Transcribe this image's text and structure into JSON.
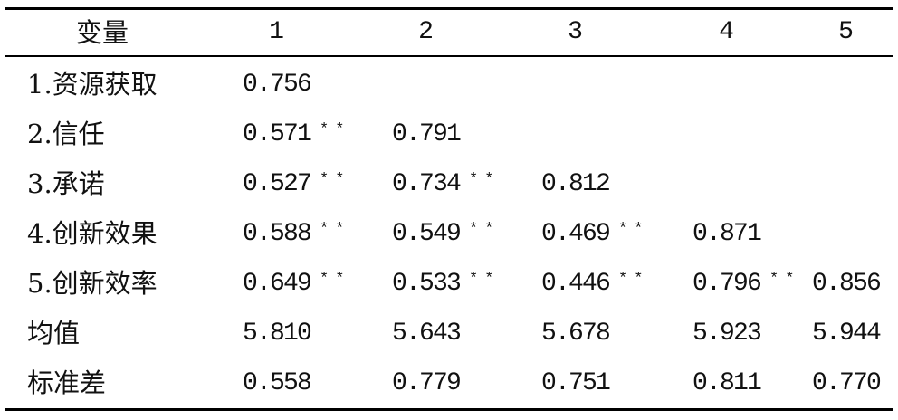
{
  "table": {
    "header": {
      "variable_label": "变量",
      "columns": [
        "1",
        "2",
        "3",
        "4",
        "5"
      ]
    },
    "rows": [
      {
        "label": "1.资源获取",
        "cells": [
          {
            "value": "0.756"
          }
        ]
      },
      {
        "label": "2.信任",
        "cells": [
          {
            "value": "0.571",
            "sig": "**"
          },
          {
            "value": "0.791"
          }
        ]
      },
      {
        "label": "3.承诺",
        "cells": [
          {
            "value": "0.527",
            "sig": "**"
          },
          {
            "value": "0.734",
            "sig": "**"
          },
          {
            "value": "0.812"
          }
        ]
      },
      {
        "label": "4.创新效果",
        "cells": [
          {
            "value": "0.588",
            "sig": "**"
          },
          {
            "value": "0.549",
            "sig": "**"
          },
          {
            "value": "0.469",
            "sig": "**"
          },
          {
            "value": "0.871"
          }
        ]
      },
      {
        "label": "5.创新效率",
        "cells": [
          {
            "value": "0.649",
            "sig": "**"
          },
          {
            "value": "0.533",
            "sig": "**"
          },
          {
            "value": "0.446",
            "sig": "**"
          },
          {
            "value": "0.796",
            "sig": "**"
          },
          {
            "value": "0.856"
          }
        ]
      },
      {
        "label": "均值",
        "cells": [
          {
            "value": "5.810"
          },
          {
            "value": "5.643"
          },
          {
            "value": "5.678"
          },
          {
            "value": "5.923"
          },
          {
            "value": "5.944"
          }
        ]
      },
      {
        "label": "标准差",
        "cells": [
          {
            "value": "0.558"
          },
          {
            "value": "0.779"
          },
          {
            "value": "0.751"
          },
          {
            "value": "0.811"
          },
          {
            "value": "0.770"
          }
        ]
      }
    ]
  }
}
